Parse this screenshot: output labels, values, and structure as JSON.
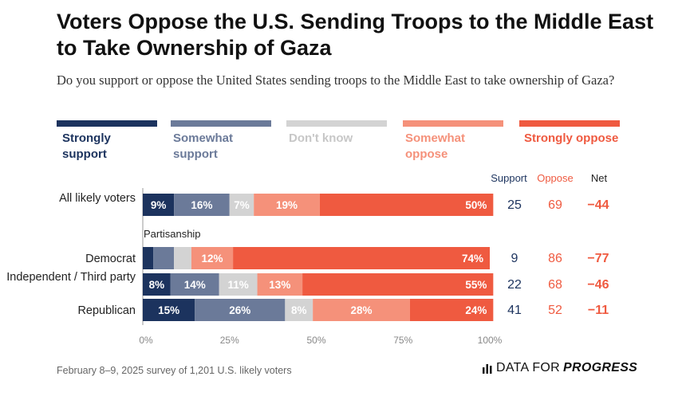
{
  "header": {
    "title": "Voters Oppose the U.S. Sending Troops to the Middle East to Take Ownership of Gaza",
    "subtitle": "Do you support or oppose the United States sending troops to the Middle East to take ownership of Gaza?"
  },
  "legend": [
    {
      "label": "Strongly support",
      "color": "#1c335e"
    },
    {
      "label": "Somewhat support",
      "color": "#6b7a99"
    },
    {
      "label": "Don't know",
      "color": "#d3d3d3"
    },
    {
      "label": "Somewhat oppose",
      "color": "#f5917a"
    },
    {
      "label": "Strongly oppose",
      "color": "#ef5a40"
    }
  ],
  "columns": {
    "support": "Support",
    "oppose": "Oppose",
    "net": "Net"
  },
  "section_label": "Partisanship",
  "footer": {
    "source": "February 8–9, 2025 survey of 1,201 U.S. likely voters",
    "brand_plain": "DATA FOR",
    "brand_bold": "PROGRESS"
  },
  "chart_data": {
    "type": "bar",
    "orientation": "horizontal-stacked",
    "title": "Voters Oppose the U.S. Sending Troops to the Middle East to Take Ownership of Gaza",
    "categories": [
      "All likely voters",
      "Democrat",
      "Independent / Third party",
      "Republican"
    ],
    "series": [
      {
        "name": "Strongly support",
        "values": [
          9,
          3,
          8,
          15
        ]
      },
      {
        "name": "Somewhat support",
        "values": [
          16,
          6,
          14,
          26
        ]
      },
      {
        "name": "Don't know",
        "values": [
          7,
          5,
          11,
          8
        ]
      },
      {
        "name": "Somewhat oppose",
        "values": [
          19,
          12,
          13,
          28
        ]
      },
      {
        "name": "Strongly oppose",
        "values": [
          50,
          74,
          55,
          24
        ]
      }
    ],
    "shown_labels": [
      [
        "9%",
        "16%",
        "7%",
        "19%",
        "50%"
      ],
      [
        "",
        "",
        "",
        "12%",
        "74%"
      ],
      [
        "8%",
        "14%",
        "11%",
        "13%",
        "55%"
      ],
      [
        "15%",
        "26%",
        "8%",
        "28%",
        "24%"
      ]
    ],
    "support": [
      25,
      9,
      22,
      41
    ],
    "oppose": [
      69,
      86,
      68,
      52
    ],
    "net": [
      "−44",
      "−77",
      "−46",
      "−11"
    ],
    "xticks": [
      "0%",
      "25%",
      "50%",
      "75%",
      "100%"
    ],
    "xlim": [
      0,
      100
    ]
  }
}
